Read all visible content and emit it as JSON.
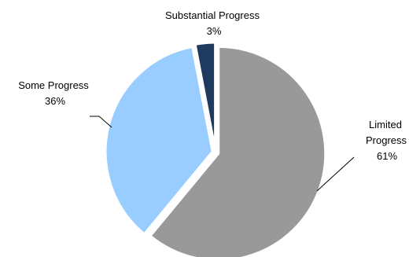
{
  "chart_data": {
    "type": "pie",
    "title": "",
    "slices": [
      {
        "label": "Limited Progress",
        "label_lines": [
          "Limited",
          "Progress"
        ],
        "value": 61,
        "value_label": "61%",
        "color": "#999999"
      },
      {
        "label": "Some Progress",
        "label_lines": [
          "Some Progress"
        ],
        "value": 36,
        "value_label": "36%",
        "color": "#99CCFF"
      },
      {
        "label": "Substantial Progress",
        "label_lines": [
          "Substantial Progress"
        ],
        "value": 3,
        "value_label": "3%",
        "color": "#1F3A5F"
      }
    ],
    "start_angle_deg": 0,
    "direction": "clockwise",
    "legend": "none"
  }
}
